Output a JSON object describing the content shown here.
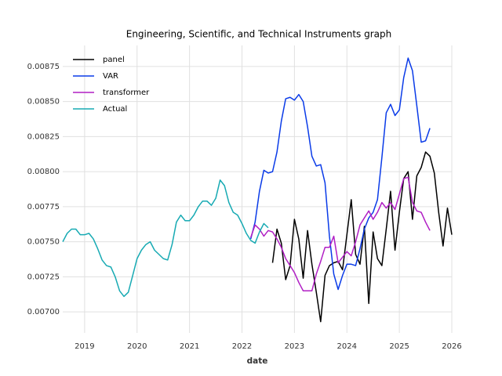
{
  "chart_data": {
    "type": "line",
    "title": "Engineering, Scientific, and Technical Instruments graph",
    "x_label": "date",
    "xlim": [
      2018.583,
      2026
    ],
    "xticks": [
      2019,
      2020,
      2021,
      2022,
      2023,
      2024,
      2025,
      2026
    ],
    "ylim": [
      0.00685,
      0.0089
    ],
    "yticks": [
      {
        "value": 0.007,
        "label": "0.00700"
      },
      {
        "value": 0.00725,
        "label": "0.00725"
      },
      {
        "value": 0.0075,
        "label": "0.00750"
      },
      {
        "value": 0.00775,
        "label": "0.00775"
      },
      {
        "value": 0.008,
        "label": "0.00800"
      },
      {
        "value": 0.00825,
        "label": "0.00825"
      },
      {
        "value": 0.0085,
        "label": "0.00850"
      },
      {
        "value": 0.00875,
        "label": "0.00875"
      }
    ],
    "grid": true,
    "legend": "upper-left",
    "series": [
      {
        "name": "panel",
        "color": "#000000",
        "x": [
          2022.583,
          2022.667,
          2022.75,
          2022.833,
          2022.917,
          2023,
          2023.083,
          2023.167,
          2023.25,
          2023.333,
          2023.417,
          2023.5,
          2023.583,
          2023.667,
          2023.75,
          2023.833,
          2023.917,
          2024,
          2024.083,
          2024.167,
          2024.25,
          2024.333,
          2024.417,
          2024.5,
          2024.583,
          2024.667,
          2024.75,
          2024.833,
          2024.917,
          2025,
          2025.083,
          2025.167,
          2025.25,
          2025.333,
          2025.417,
          2025.5,
          2025.583,
          2025.667,
          2025.75,
          2025.833,
          2025.917,
          2026
        ],
        "values": [
          0.00735,
          0.00759,
          0.00749,
          0.00723,
          0.00733,
          0.00766,
          0.00752,
          0.00724,
          0.00758,
          0.00734,
          0.00714,
          0.00693,
          0.00726,
          0.00733,
          0.00735,
          0.00736,
          0.0073,
          0.00755,
          0.0078,
          0.00741,
          0.00734,
          0.00761,
          0.00706,
          0.00757,
          0.00738,
          0.00733,
          0.00759,
          0.00786,
          0.00744,
          0.00771,
          0.00795,
          0.008,
          0.00766,
          0.00797,
          0.00803,
          0.00814,
          0.00811,
          0.00799,
          0.00771,
          0.00747,
          0.00774,
          0.00755
        ]
      },
      {
        "name": "VAR",
        "color": "#0a3be8",
        "x": [
          2022.167,
          2022.25,
          2022.333,
          2022.417,
          2022.5,
          2022.583,
          2022.667,
          2022.75,
          2022.833,
          2022.917,
          2023,
          2023.083,
          2023.167,
          2023.25,
          2023.333,
          2023.417,
          2023.5,
          2023.583,
          2023.667,
          2023.75,
          2023.833,
          2023.917,
          2024,
          2024.083,
          2024.167,
          2024.25,
          2024.333,
          2024.417,
          2024.5,
          2024.583,
          2024.667,
          2024.75,
          2024.833,
          2024.917,
          2025,
          2025.083,
          2025.167,
          2025.25,
          2025.333,
          2025.417,
          2025.5,
          2025.583
        ],
        "values": [
          0.00752,
          0.00764,
          0.00786,
          0.00801,
          0.00799,
          0.008,
          0.00814,
          0.00836,
          0.00852,
          0.00853,
          0.00851,
          0.00855,
          0.0085,
          0.00832,
          0.00811,
          0.00804,
          0.00805,
          0.00792,
          0.00754,
          0.00727,
          0.00716,
          0.00726,
          0.00734,
          0.00734,
          0.00733,
          0.00745,
          0.00759,
          0.00767,
          0.00771,
          0.0078,
          0.0081,
          0.00842,
          0.00848,
          0.0084,
          0.00844,
          0.00867,
          0.00881,
          0.00872,
          0.00847,
          0.00821,
          0.00822,
          0.00831
        ]
      },
      {
        "name": "transformer",
        "color": "#b01ec4",
        "x": [
          2022.167,
          2022.25,
          2022.333,
          2022.417,
          2022.5,
          2022.583,
          2022.667,
          2022.75,
          2022.833,
          2022.917,
          2023,
          2023.083,
          2023.167,
          2023.25,
          2023.333,
          2023.417,
          2023.5,
          2023.583,
          2023.667,
          2023.75,
          2023.833,
          2023.917,
          2024,
          2024.083,
          2024.167,
          2024.25,
          2024.333,
          2024.417,
          2024.5,
          2024.583,
          2024.667,
          2024.75,
          2024.833,
          2024.917,
          2025,
          2025.083,
          2025.167,
          2025.25,
          2025.333,
          2025.417,
          2025.5,
          2025.583
        ],
        "values": [
          0.00753,
          0.00762,
          0.00759,
          0.00754,
          0.00758,
          0.00757,
          0.00752,
          0.00746,
          0.00738,
          0.00733,
          0.00728,
          0.00721,
          0.00715,
          0.00715,
          0.00715,
          0.00727,
          0.00736,
          0.00746,
          0.00746,
          0.00754,
          0.00735,
          0.00739,
          0.00743,
          0.0074,
          0.0075,
          0.00762,
          0.00767,
          0.00772,
          0.00766,
          0.00771,
          0.00778,
          0.00774,
          0.00778,
          0.00773,
          0.00784,
          0.00795,
          0.00796,
          0.00778,
          0.00772,
          0.00771,
          0.00764,
          0.00758
        ]
      },
      {
        "name": "Actual",
        "color": "#17aab3",
        "x": [
          2018.583,
          2018.667,
          2018.75,
          2018.833,
          2018.917,
          2019,
          2019.083,
          2019.167,
          2019.25,
          2019.333,
          2019.417,
          2019.5,
          2019.583,
          2019.667,
          2019.75,
          2019.833,
          2019.917,
          2020,
          2020.083,
          2020.167,
          2020.25,
          2020.333,
          2020.417,
          2020.5,
          2020.583,
          2020.667,
          2020.75,
          2020.833,
          2020.917,
          2021,
          2021.083,
          2021.167,
          2021.25,
          2021.333,
          2021.417,
          2021.5,
          2021.583,
          2021.667,
          2021.75,
          2021.833,
          2021.917,
          2022,
          2022.083,
          2022.167,
          2022.25,
          2022.333,
          2022.417,
          2022.5
        ],
        "values": [
          0.0075,
          0.00756,
          0.00759,
          0.00759,
          0.00755,
          0.00755,
          0.00756,
          0.00752,
          0.00745,
          0.00737,
          0.00733,
          0.00732,
          0.00725,
          0.00715,
          0.00711,
          0.00714,
          0.00726,
          0.00738,
          0.00744,
          0.00748,
          0.0075,
          0.00744,
          0.00741,
          0.00738,
          0.00737,
          0.00748,
          0.00764,
          0.00769,
          0.00765,
          0.00765,
          0.00769,
          0.00775,
          0.00779,
          0.00779,
          0.00776,
          0.00781,
          0.00794,
          0.0079,
          0.00778,
          0.00771,
          0.00769,
          0.00763,
          0.00756,
          0.00751,
          0.00749,
          0.00757,
          0.00763,
          0.0076
        ]
      }
    ]
  }
}
